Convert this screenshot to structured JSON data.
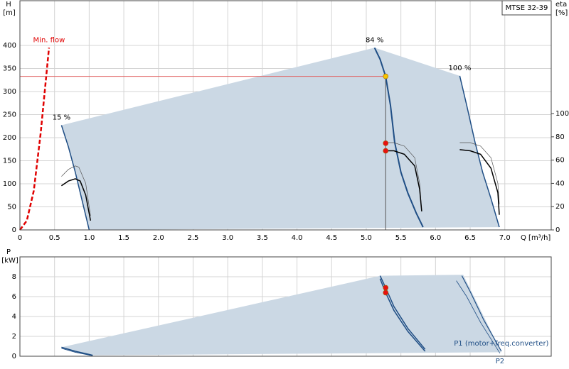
{
  "chart_data": [
    {
      "type": "line",
      "title": "MTSE 32-39",
      "ylabel": "H",
      "yunit": "[m]",
      "y2label": "eta",
      "y2unit": "[%]",
      "xlabel": "Q [m³/h]",
      "xlim": [
        0,
        7.67
      ],
      "ylim": [
        0,
        497
      ],
      "y2lim": [
        0,
        197
      ],
      "grid": true,
      "xticks": [
        0,
        0.5,
        {
          "value": 1,
          "label": "1.0"
        },
        1.5,
        {
          "value": 2,
          "label": "2.0"
        },
        2.5,
        {
          "value": 3,
          "label": "3.0"
        },
        3.5,
        {
          "value": 4,
          "label": "4.0"
        },
        4.5,
        {
          "value": 5,
          "label": "5.0"
        },
        5.5,
        {
          "value": 6,
          "label": "6.0"
        },
        6.5,
        {
          "value": 7,
          "label": "7.0"
        }
      ],
      "yticks": [
        0,
        50,
        100,
        150,
        200,
        250,
        300,
        350,
        400
      ],
      "y2ticks": [
        0,
        20,
        40,
        60,
        80,
        100
      ],
      "series": [
        {
          "style": "area",
          "color": "#cbd8e4",
          "x": [
            0.6,
            5.12,
            6.35,
            6.45,
            6.57,
            6.68,
            6.8,
            6.92,
            1.0,
            0.9,
            0.8,
            0.7,
            0.6
          ],
          "values": [
            227,
            395,
            334,
            270,
            190,
            125,
            68,
            6,
            0,
            62,
            125,
            180,
            227
          ]
        },
        {
          "name": "Min. flow",
          "label_at": "end",
          "style": "dashed",
          "color": "#e00000",
          "width": 2.5,
          "x": [
            0,
            0.1,
            0.2,
            0.3,
            0.42
          ],
          "values": [
            0,
            20,
            85,
            210,
            395
          ]
        },
        {
          "style": "line",
          "color": "#e06060",
          "width": 1,
          "x": [
            0,
            5.28
          ],
          "values": [
            333,
            333
          ]
        },
        {
          "style": "line",
          "color": "#555555",
          "width": 1,
          "x": [
            5.28,
            5.28
          ],
          "values": [
            0,
            333
          ]
        },
        {
          "name": "15 %",
          "label_at": "start",
          "style": "line",
          "color": "#1f4e85",
          "width": 1.5,
          "x": [
            0.6,
            0.7,
            0.8,
            0.9,
            1.0
          ],
          "values": [
            227,
            180,
            125,
            62,
            0
          ]
        },
        {
          "name": "84 %",
          "label_at": "start",
          "style": "line",
          "color": "#1f4e85",
          "width": 2,
          "x": [
            5.12,
            5.2,
            5.28,
            5.35,
            5.41,
            5.5,
            5.6,
            5.72,
            5.82
          ],
          "values": [
            395,
            370,
            333,
            270,
            190,
            125,
            80,
            37,
            6
          ]
        },
        {
          "name": "100 %",
          "label_at": "start",
          "style": "line",
          "color": "#1f4e85",
          "width": 1.5,
          "x": [
            6.35,
            6.45,
            6.57,
            6.68,
            6.8,
            6.92
          ],
          "values": [
            334,
            270,
            190,
            125,
            68,
            6
          ]
        },
        {
          "style": "line",
          "axis": "y2",
          "color": "#555555",
          "width": 0.7,
          "x": [
            0.6,
            0.7,
            0.8,
            0.85,
            0.95,
            1.02
          ],
          "values": [
            46,
            52,
            55,
            54,
            40,
            12
          ]
        },
        {
          "style": "line",
          "axis": "y2",
          "color": "#000000",
          "width": 1.5,
          "x": [
            0.6,
            0.7,
            0.8,
            0.87,
            0.95,
            1.02
          ],
          "values": [
            38,
            42,
            44,
            42,
            30,
            8
          ]
        },
        {
          "style": "line",
          "axis": "y2",
          "color": "#555555",
          "width": 0.7,
          "x": [
            5.28,
            5.4,
            5.55,
            5.7,
            5.77,
            5.8
          ],
          "values": [
            75,
            75,
            72,
            62,
            40,
            16
          ]
        },
        {
          "style": "line",
          "axis": "y2",
          "color": "#000000",
          "width": 1.5,
          "x": [
            5.28,
            5.4,
            5.55,
            5.7,
            5.77,
            5.8
          ],
          "values": [
            68,
            68,
            65,
            55,
            35,
            16
          ]
        },
        {
          "style": "line",
          "axis": "y2",
          "color": "#555555",
          "width": 0.7,
          "x": [
            6.35,
            6.5,
            6.65,
            6.8,
            6.9,
            6.92
          ],
          "values": [
            75,
            75,
            72,
            62,
            40,
            22
          ]
        },
        {
          "style": "line",
          "axis": "y2",
          "color": "#000000",
          "width": 1.5,
          "x": [
            6.35,
            6.5,
            6.65,
            6.8,
            6.9,
            6.92
          ],
          "values": [
            69,
            68,
            65,
            53,
            32,
            13
          ]
        },
        {
          "style": "points",
          "axis": "y2",
          "color": "#e81010",
          "x": [
            5.28,
            5.28
          ],
          "values": [
            74.5,
            68
          ]
        },
        {
          "style": "points",
          "color": "#f5c400",
          "x": [
            5.28
          ],
          "values": [
            333
          ]
        }
      ]
    },
    {
      "type": "line",
      "ylabel": "P",
      "yunit": "[kW]",
      "xlim": [
        0,
        7.67
      ],
      "ylim": [
        0,
        10
      ],
      "grid": true,
      "xtick_labels": false,
      "xticks": [
        0,
        0.5,
        1,
        1.5,
        2,
        2.5,
        3,
        3.5,
        4,
        4.5,
        5,
        5.5,
        6,
        6.5,
        7
      ],
      "yticks": [
        0,
        2,
        4,
        6,
        8
      ],
      "series": [
        {
          "style": "area",
          "color": "#cbd8e4",
          "x": [
            0.6,
            5.2,
            6.4,
            6.95,
            1.05,
            0.6
          ],
          "values": [
            0.9,
            8.1,
            8.2,
            0.4,
            0.1,
            0.9
          ]
        },
        {
          "style": "line",
          "color": "#1f4e85",
          "width": 1.5,
          "x": [
            0.6,
            0.8,
            1.05
          ],
          "values": [
            0.9,
            0.5,
            0.1
          ]
        },
        {
          "style": "line",
          "color": "#1f4e85",
          "width": 1,
          "x": [
            0.6,
            0.8,
            1.05
          ],
          "values": [
            0.8,
            0.4,
            0.05
          ]
        },
        {
          "style": "line",
          "color": "#1f4e85",
          "width": 1.5,
          "x": [
            5.2,
            5.28,
            5.4,
            5.6,
            5.85
          ],
          "values": [
            8.1,
            6.9,
            5.0,
            2.8,
            0.7
          ]
        },
        {
          "style": "line",
          "color": "#1f4e85",
          "width": 1.5,
          "x": [
            5.2,
            5.28,
            5.4,
            5.6,
            5.85
          ],
          "values": [
            7.8,
            6.4,
            4.6,
            2.5,
            0.5
          ]
        },
        {
          "name": "P1 (motor+freq.converter)",
          "label_at": "end",
          "style": "line",
          "color": "#1f4e85",
          "width": 1.2,
          "x": [
            6.38,
            6.5,
            6.7,
            6.95
          ],
          "values": [
            8.1,
            6.5,
            3.6,
            0.5
          ]
        },
        {
          "name": "P2",
          "label_at": "end-below",
          "style": "line",
          "color": "#1f4e85",
          "width": 0.8,
          "x": [
            6.3,
            6.45,
            6.65,
            6.93
          ],
          "values": [
            7.6,
            6.0,
            3.4,
            0.3
          ]
        },
        {
          "style": "points",
          "color": "#e81010",
          "x": [
            5.28,
            5.28
          ],
          "values": [
            6.9,
            6.4
          ]
        }
      ]
    }
  ]
}
